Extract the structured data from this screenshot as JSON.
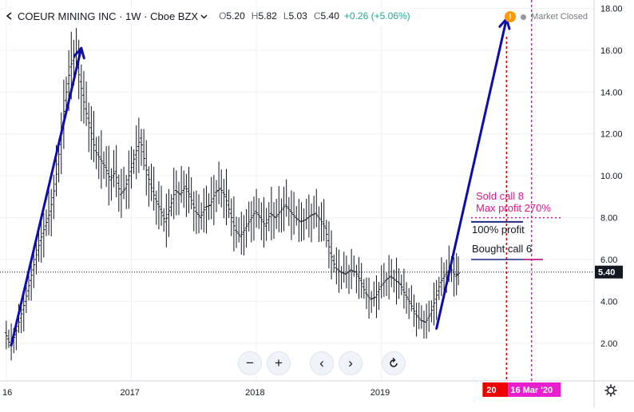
{
  "header": {
    "symbol": "COEUR MINING INC · 1W · Cboe BZX",
    "open_label": "O",
    "open": "5.20",
    "high_label": "H",
    "high": "5.82",
    "low_label": "L",
    "low": "5.03",
    "close_label": "C",
    "close": "5.40",
    "change": "+0.26 (+5.06%)"
  },
  "status": {
    "text": "Market Closed",
    "warning_icon": "!"
  },
  "toolbar": {
    "zoom_out": "−",
    "zoom_in": "+",
    "scroll_left": "‹",
    "scroll_right": "›",
    "reset": "reset-icon"
  },
  "colors": {
    "price": "#131722",
    "annotation_blue": "#0d0dab",
    "accent_pink": "#e0188a",
    "red_line": "#cc0000",
    "magenta_line": "#c020c0",
    "navy": "#1f2a80"
  },
  "chart_data": {
    "type": "bar",
    "style": "ohlc-weekly",
    "title": "COEUR MINING INC · 1W · Cboe BZX",
    "last_price": 5.4,
    "y_ticks": [
      2.0,
      4.0,
      6.0,
      8.0,
      10.0,
      12.0,
      14.0,
      16.0,
      18.0
    ],
    "ylim": [
      0.2,
      18.4
    ],
    "x_ticks": [
      "16",
      "2017",
      "2018",
      "2019"
    ],
    "x_range_years": [
      2016.0,
      2020.5
    ],
    "series": [
      {
        "values": [
          [
            2016.0,
            2.5
          ],
          [
            2016.04,
            1.9
          ],
          [
            2016.08,
            2.4
          ],
          [
            2016.12,
            3.2
          ],
          [
            2016.16,
            4.0
          ],
          [
            2016.2,
            5.0
          ],
          [
            2016.24,
            6.0
          ],
          [
            2016.28,
            6.9
          ],
          [
            2016.32,
            7.6
          ],
          [
            2016.36,
            8.3
          ],
          [
            2016.4,
            9.6
          ],
          [
            2016.44,
            11.5
          ],
          [
            2016.48,
            13.6
          ],
          [
            2016.52,
            15.2
          ],
          [
            2016.56,
            15.8
          ],
          [
            2016.6,
            14.5
          ],
          [
            2016.64,
            13.2
          ],
          [
            2016.68,
            12.3
          ],
          [
            2016.72,
            11.2
          ],
          [
            2016.76,
            10.8
          ],
          [
            2016.8,
            10.4
          ],
          [
            2016.84,
            9.8
          ],
          [
            2016.88,
            10.2
          ],
          [
            2016.92,
            9.1
          ],
          [
            2016.96,
            9.4
          ],
          [
            2017.0,
            10.2
          ],
          [
            2017.04,
            11.0
          ],
          [
            2017.08,
            11.8
          ],
          [
            2017.12,
            10.5
          ],
          [
            2017.16,
            9.6
          ],
          [
            2017.2,
            8.9
          ],
          [
            2017.24,
            8.4
          ],
          [
            2017.28,
            7.8
          ],
          [
            2017.32,
            8.5
          ],
          [
            2017.36,
            9.3
          ],
          [
            2017.4,
            9.1
          ],
          [
            2017.44,
            9.5
          ],
          [
            2017.48,
            9.0
          ],
          [
            2017.52,
            8.3
          ],
          [
            2017.56,
            8.0
          ],
          [
            2017.6,
            8.5
          ],
          [
            2017.64,
            8.6
          ],
          [
            2017.68,
            9.2
          ],
          [
            2017.72,
            9.4
          ],
          [
            2017.76,
            9.0
          ],
          [
            2017.8,
            8.2
          ],
          [
            2017.84,
            7.4
          ],
          [
            2017.88,
            7.1
          ],
          [
            2017.92,
            7.5
          ],
          [
            2017.96,
            7.9
          ],
          [
            2018.0,
            8.3
          ],
          [
            2018.04,
            8.0
          ],
          [
            2018.08,
            7.6
          ],
          [
            2018.12,
            8.2
          ],
          [
            2018.16,
            8.0
          ],
          [
            2018.2,
            8.3
          ],
          [
            2018.24,
            8.6
          ],
          [
            2018.28,
            8.3
          ],
          [
            2018.32,
            8.0
          ],
          [
            2018.36,
            7.8
          ],
          [
            2018.4,
            7.9
          ],
          [
            2018.44,
            8.1
          ],
          [
            2018.48,
            8.2
          ],
          [
            2018.52,
            7.9
          ],
          [
            2018.56,
            7.5
          ],
          [
            2018.6,
            6.3
          ],
          [
            2018.64,
            5.6
          ],
          [
            2018.68,
            5.4
          ],
          [
            2018.72,
            5.3
          ],
          [
            2018.76,
            5.5
          ],
          [
            2018.8,
            5.4
          ],
          [
            2018.84,
            5.0
          ],
          [
            2018.88,
            4.4
          ],
          [
            2018.92,
            4.1
          ],
          [
            2018.96,
            4.2
          ],
          [
            2019.0,
            4.7
          ],
          [
            2019.04,
            5.0
          ],
          [
            2019.08,
            5.2
          ],
          [
            2019.12,
            5.0
          ],
          [
            2019.16,
            4.8
          ],
          [
            2019.2,
            4.3
          ],
          [
            2019.24,
            3.9
          ],
          [
            2019.28,
            3.4
          ],
          [
            2019.32,
            3.1
          ],
          [
            2019.36,
            3.0
          ],
          [
            2019.4,
            3.4
          ],
          [
            2019.44,
            4.1
          ],
          [
            2019.48,
            4.9
          ],
          [
            2019.52,
            5.3
          ],
          [
            2019.56,
            5.6
          ],
          [
            2019.6,
            5.2
          ],
          [
            2019.63,
            5.4
          ]
        ]
      }
    ],
    "annotations": {
      "arrows": [
        {
          "from": [
            2016.04,
            1.9
          ],
          "to": [
            2016.6,
            16.1
          ]
        },
        {
          "from": [
            2019.44,
            2.7
          ],
          "to": [
            2020.0,
            17.5
          ]
        }
      ],
      "levels": [
        {
          "label": "Sold call 8",
          "value": 8.0,
          "style": "dotted"
        },
        {
          "label": "Max profit 270%",
          "value": 8.0
        },
        {
          "label": "100% profit",
          "value": 7.8
        },
        {
          "label": "Bought call 6",
          "value": 6.0
        }
      ],
      "vertical_lines": [
        {
          "date": 2020.0,
          "label": "20"
        },
        {
          "date": 2020.2,
          "label": "16 Mar '20"
        }
      ]
    }
  }
}
